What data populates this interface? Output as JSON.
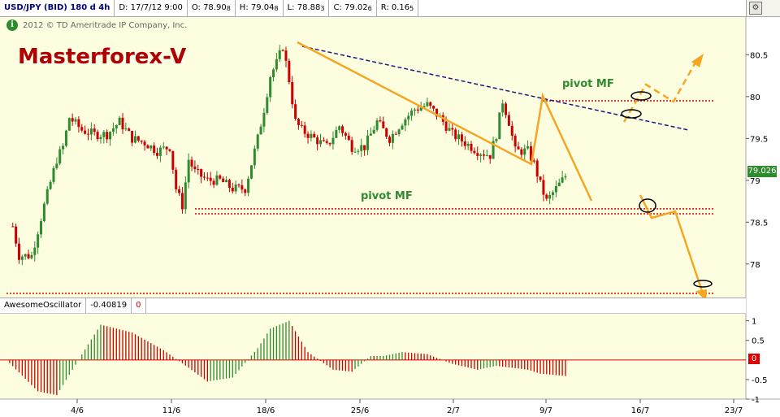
{
  "header": {
    "symbol": "USD/JPY (BID) 180 d 4h",
    "date": "D: 17/7/12 9:00",
    "open": "O: 78.90",
    "open_sub": "8",
    "high": "H: 79.04",
    "high_sub": "8",
    "low": "L: 78.88",
    "low_sub": "3",
    "close": "C: 79.02",
    "close_sub": "6",
    "range": "R: 0.16",
    "range_sub": "5"
  },
  "copyright": "2012 © TD Ameritrade IP Company, Inc.",
  "brand": "Masterforex-V",
  "pivot_label_upper": "pivot MF",
  "pivot_label_lower": "pivot MF",
  "last_price": "79.026",
  "oscillator": {
    "name": "AwesomeOscillator",
    "value": "-0.40819",
    "zero_value": "0"
  },
  "colors": {
    "up": "#2e8b2e",
    "down": "#cc0000",
    "projection": "#f5a623",
    "trendline": "#1a1a80",
    "pivot": "#dd0000",
    "background": "#fdfde0"
  },
  "chart_data": [
    {
      "type": "candlestick",
      "title": "USD/JPY (BID) 180 d 4h",
      "xlabel": "",
      "ylabel": "",
      "ylim": [
        77.6,
        80.95
      ],
      "x_tick_labels": [
        "4/6",
        "11/6",
        "18/6",
        "25/6",
        "2/7",
        "9/7",
        "16/7",
        "23/7"
      ],
      "y_tick_labels": [
        "80.5",
        "80",
        "79.5",
        "79",
        "78.5",
        "78"
      ],
      "y_tick_values": [
        80.5,
        80.0,
        79.5,
        79.0,
        78.5,
        78.0
      ],
      "close_path": [
        [
          1,
          78.45
        ],
        [
          2,
          78.1
        ],
        [
          4,
          78.1
        ],
        [
          6,
          78.7
        ],
        [
          8,
          79.25
        ],
        [
          9,
          79.4
        ],
        [
          10,
          79.75
        ],
        [
          12,
          79.6
        ],
        [
          14,
          79.55
        ],
        [
          16,
          79.55
        ],
        [
          18,
          79.7
        ],
        [
          20,
          79.5
        ],
        [
          22,
          79.45
        ],
        [
          24,
          79.35
        ],
        [
          26,
          79.4
        ],
        [
          27,
          78.9
        ],
        [
          28,
          78.7
        ],
        [
          29,
          79.25
        ],
        [
          30,
          79.1
        ],
        [
          32,
          79.0
        ],
        [
          34,
          79.0
        ],
        [
          36,
          78.9
        ],
        [
          38,
          78.9
        ],
        [
          39,
          79.2
        ],
        [
          40,
          79.5
        ],
        [
          41,
          79.85
        ],
        [
          42,
          80.25
        ],
        [
          43,
          80.4
        ],
        [
          44,
          80.6
        ],
        [
          45,
          80.2
        ],
        [
          46,
          79.7
        ],
        [
          47,
          79.6
        ],
        [
          49,
          79.5
        ],
        [
          51,
          79.4
        ],
        [
          53,
          79.65
        ],
        [
          55,
          79.4
        ],
        [
          57,
          79.4
        ],
        [
          59,
          79.7
        ],
        [
          61,
          79.5
        ],
        [
          63,
          79.7
        ],
        [
          65,
          79.85
        ],
        [
          67,
          79.9
        ],
        [
          69,
          79.75
        ],
        [
          71,
          79.55
        ],
        [
          73,
          79.45
        ],
        [
          75,
          79.35
        ],
        [
          77,
          79.3
        ],
        [
          78,
          79.55
        ],
        [
          79,
          79.95
        ],
        [
          80,
          79.7
        ],
        [
          81,
          79.35
        ],
        [
          83,
          79.35
        ],
        [
          84,
          79.2
        ],
        [
          85,
          78.95
        ],
        [
          86,
          78.75
        ],
        [
          87,
          78.85
        ],
        [
          88,
          78.95
        ],
        [
          89,
          79.05
        ]
      ],
      "trendline": [
        [
          44,
          80.6
        ],
        [
          98,
          79.6
        ]
      ],
      "pivot_upper": 79.95,
      "pivot_lower": [
        78.6,
        78.66
      ],
      "pivot_bottom": 77.65,
      "projection_up": [
        [
          92,
          79.6
        ],
        [
          96,
          80.1
        ],
        [
          100,
          79.9
        ],
        [
          104,
          80.45
        ]
      ],
      "projection_down": [
        [
          95,
          78.6
        ],
        [
          100,
          78.55
        ],
        [
          105,
          77.6
        ]
      ]
    },
    {
      "type": "bar",
      "title": "AwesomeOscillator",
      "ylim": [
        -1,
        1.2
      ],
      "y_tick_labels": [
        "1",
        "0.5",
        "-0.5",
        "-1"
      ],
      "y_tick_values": [
        1,
        0.5,
        -0.5,
        -1
      ],
      "x": [
        0,
        5,
        8,
        13,
        15,
        20,
        25,
        29,
        32,
        36,
        40,
        42,
        45,
        48,
        52,
        55,
        58,
        60,
        63,
        67,
        71,
        75,
        78,
        83,
        85,
        89
      ],
      "values": [
        0.0,
        -0.8,
        -0.9,
        0.4,
        0.9,
        0.7,
        0.25,
        -0.2,
        -0.55,
        -0.45,
        0.3,
        0.8,
        1.0,
        0.2,
        -0.25,
        -0.3,
        0.1,
        0.1,
        0.2,
        0.15,
        -0.1,
        -0.25,
        -0.15,
        -0.25,
        -0.35,
        -0.41
      ]
    }
  ]
}
